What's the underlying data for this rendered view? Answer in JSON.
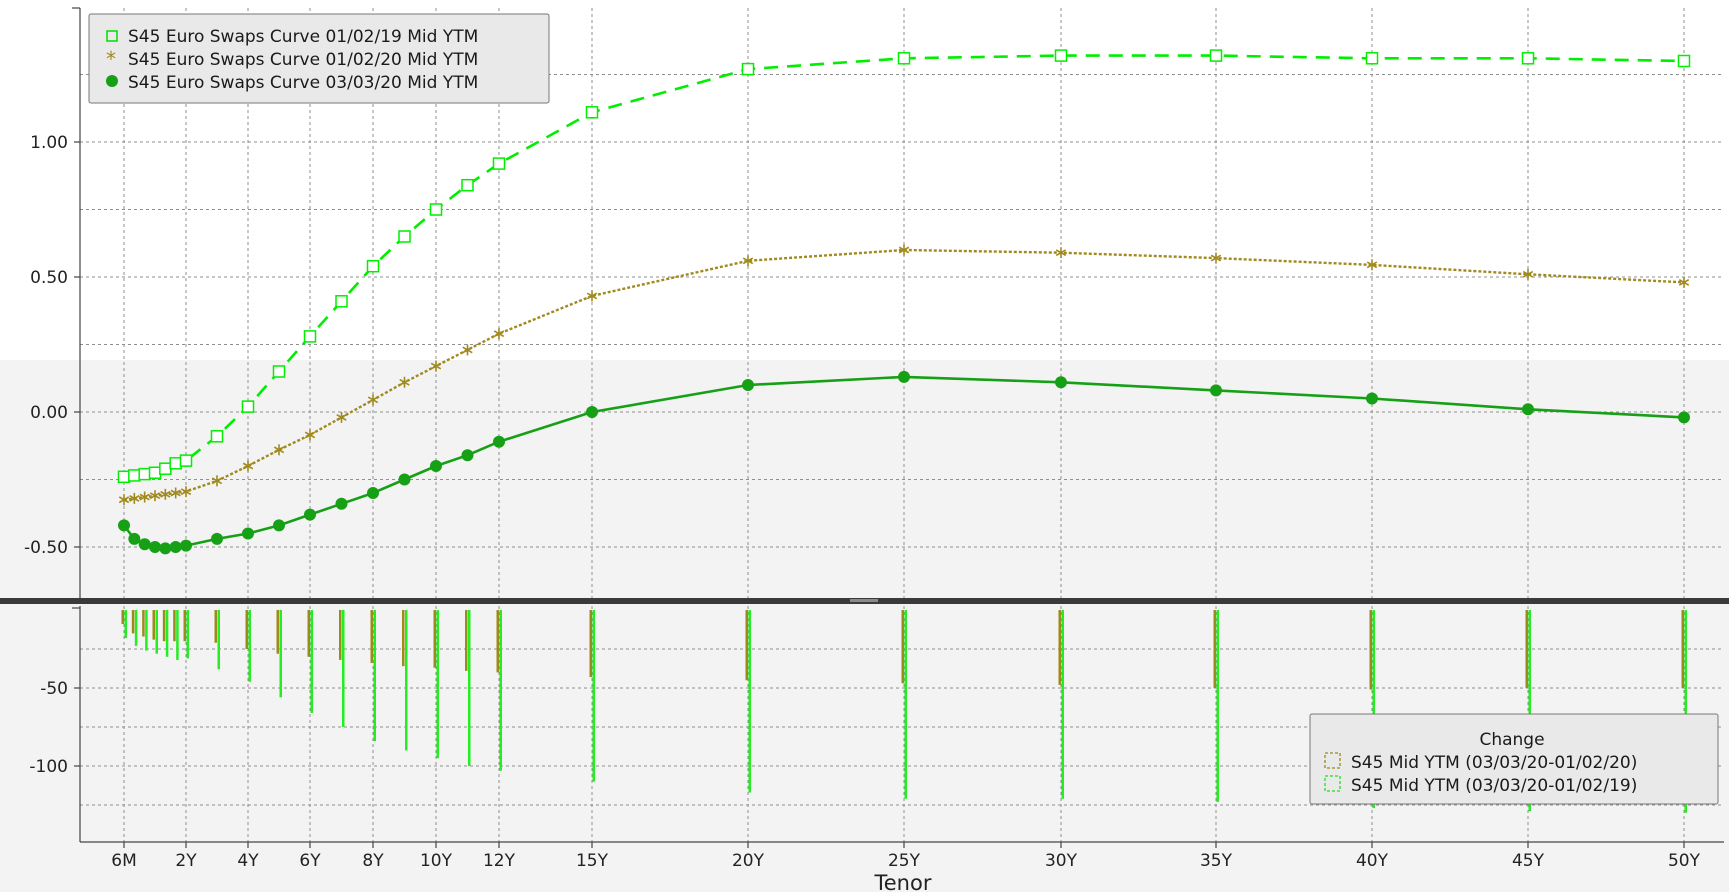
{
  "colors": {
    "series_2019": "#00ee00",
    "series_2020_jan": "#a08a1e",
    "series_2020_mar": "#16a016",
    "bar_change_2020": "#9c8a1a",
    "bar_change_2019": "#22ee22",
    "panel_bg": "#f2f2f2",
    "divider": "#3a3a3a"
  },
  "chart_data": [
    {
      "type": "line",
      "ylim": [
        -0.68,
        1.5
      ],
      "yticks": [
        -0.5,
        0,
        0.5,
        1.0
      ],
      "ytick_labels": [
        "-0.50",
        "0.00",
        "0.50",
        "1.00"
      ],
      "grid": true,
      "legend_position": "top-left",
      "x_tenor_years": [
        0.5,
        0.75,
        1,
        1.25,
        1.5,
        1.75,
        2,
        3,
        4,
        5,
        6,
        7,
        8,
        9,
        10,
        11,
        12,
        15,
        20,
        25,
        30,
        35,
        40,
        45,
        50
      ],
      "series": [
        {
          "name": "S45 Euro Swaps Curve 01/02/19 Mid YTM",
          "marker": "square",
          "line": "dashed",
          "color_key": "series_2019",
          "values": [
            -0.24,
            -0.235,
            -0.23,
            -0.225,
            -0.21,
            -0.19,
            -0.18,
            -0.09,
            0.02,
            0.15,
            0.28,
            0.41,
            0.54,
            0.65,
            0.75,
            0.84,
            0.92,
            1.11,
            1.27,
            1.31,
            1.32,
            1.32,
            1.31,
            1.31,
            1.3
          ]
        },
        {
          "name": "S45 Euro Swaps Curve 01/02/20 Mid YTM",
          "marker": "asterisk",
          "line": "dotted",
          "color_key": "series_2020_jan",
          "values": [
            -0.325,
            -0.32,
            -0.315,
            -0.31,
            -0.305,
            -0.3,
            -0.295,
            -0.255,
            -0.2,
            -0.14,
            -0.085,
            -0.02,
            0.045,
            0.11,
            0.17,
            0.23,
            0.29,
            0.43,
            0.56,
            0.6,
            0.59,
            0.57,
            0.545,
            0.51,
            0.48
          ]
        },
        {
          "name": "S45 Euro Swaps Curve 03/03/20 Mid YTM",
          "marker": "circle",
          "line": "solid",
          "color_key": "series_2020_mar",
          "values": [
            -0.42,
            -0.47,
            -0.49,
            -0.5,
            -0.505,
            -0.5,
            -0.495,
            -0.47,
            -0.45,
            -0.42,
            -0.38,
            -0.34,
            -0.3,
            -0.25,
            -0.2,
            -0.16,
            -0.11,
            0.0,
            0.1,
            0.13,
            0.11,
            0.08,
            0.05,
            0.01,
            -0.02
          ]
        }
      ]
    },
    {
      "type": "bar",
      "title": "Change",
      "ylim": [
        -150,
        5
      ],
      "yticks": [
        -50,
        -100
      ],
      "ytick_labels": [
        "-50",
        "-100"
      ],
      "grid": true,
      "legend_position": "bottom-right",
      "xlabel": "Tenor",
      "x_tick_years": [
        0.5,
        2,
        4,
        6,
        8,
        10,
        12,
        15,
        20,
        25,
        30,
        35,
        40,
        45,
        50
      ],
      "x_tick_labels": [
        "6M",
        "2Y",
        "4Y",
        "6Y",
        "8Y",
        "10Y",
        "12Y",
        "15Y",
        "20Y",
        "25Y",
        "30Y",
        "35Y",
        "40Y",
        "45Y",
        "50Y"
      ],
      "x_tenor_years": [
        0.5,
        0.75,
        1,
        1.25,
        1.5,
        1.75,
        2,
        3,
        4,
        5,
        6,
        7,
        8,
        9,
        10,
        11,
        12,
        15,
        20,
        25,
        30,
        35,
        40,
        45,
        50
      ],
      "series": [
        {
          "name": "S45 Mid YTM (03/03/20-01/02/20)",
          "color_key": "bar_change_2020",
          "values": [
            -9,
            -15,
            -17,
            -19,
            -20,
            -20,
            -20,
            -21,
            -25,
            -28,
            -30,
            -32,
            -34,
            -36,
            -37,
            -39,
            -40,
            -43,
            -45,
            -47,
            -48,
            -50,
            -51,
            -50,
            -50
          ]
        },
        {
          "name": "S45 Mid YTM (03/03/20-01/02/19)",
          "color_key": "bar_change_2019",
          "values": [
            -18,
            -23,
            -26,
            -28,
            -30,
            -32,
            -31,
            -38,
            -46,
            -56,
            -66,
            -75,
            -84,
            -90,
            -95,
            -100,
            -103,
            -110,
            -117,
            -121,
            -121,
            -123,
            -127,
            -129,
            -130
          ]
        }
      ]
    }
  ]
}
